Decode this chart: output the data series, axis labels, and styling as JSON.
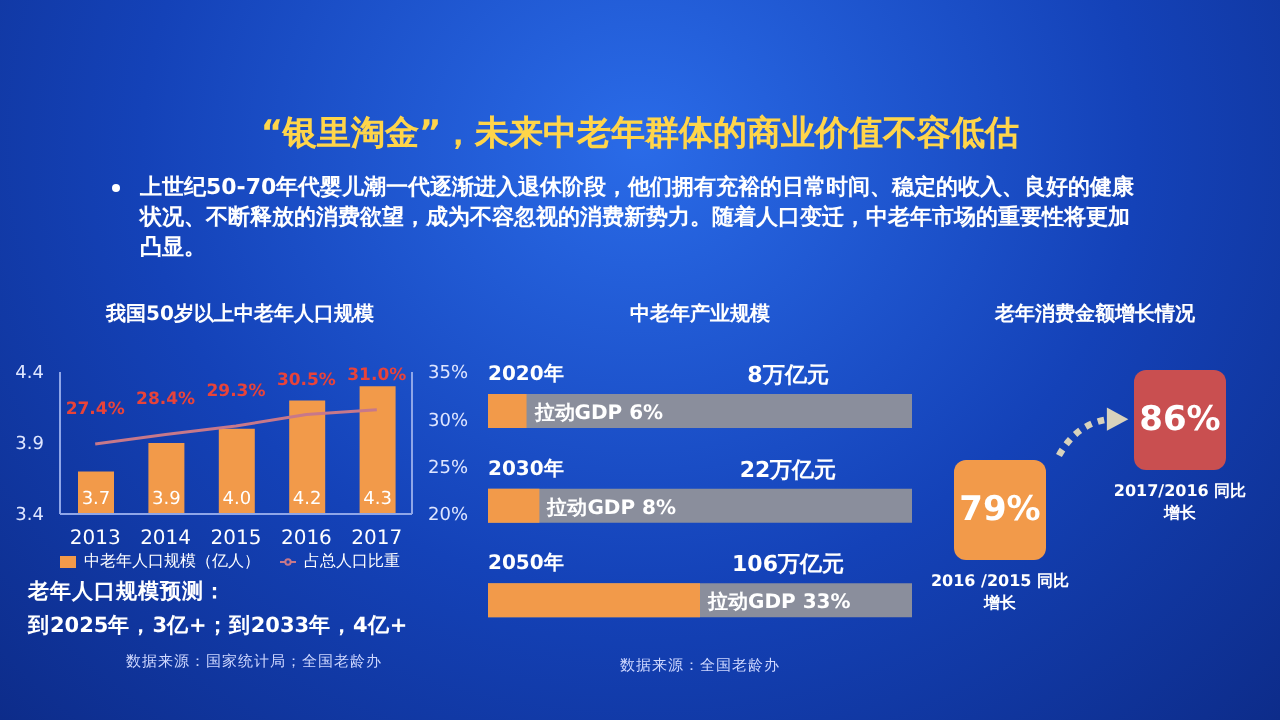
{
  "chart_data": [
    {
      "type": "other",
      "title": "“银里淘金”，未来中老年群体的商业价值不容低估",
      "annotations": [
        "上世纪50-70年代婴儿潮一代逐渐进入退休阶段，他们拥有充裕的日常时间、稳定的收入、良好的健康状况、不断释放的消费欲望，成为不容忽视的消费新势力。随着人口变迁，中老年市场的重要性将更加凸显。"
      ]
    },
    {
      "type": "bar",
      "title": "我国50岁以上中老年人口规模",
      "categories": [
        "2013",
        "2014",
        "2015",
        "2016",
        "2017"
      ],
      "series": [
        {
          "name": "中老年人口规模（亿人）",
          "type": "bar",
          "color": "#f29a4a",
          "values": [
            3.7,
            3.9,
            4.0,
            4.2,
            4.3
          ],
          "value_labels": [
            "3.7",
            "3.9",
            "4.0",
            "4.2",
            "4.3"
          ]
        },
        {
          "name": "占总人口比重",
          "type": "line",
          "axis": "y2",
          "color": "#c7788a",
          "values": [
            27.4,
            28.4,
            29.3,
            30.5,
            31.0
          ],
          "value_labels": [
            "27.4%",
            "28.4%",
            "29.3%",
            "30.5%",
            "31.0%"
          ]
        }
      ],
      "ylim": [
        3.4,
        4.4
      ],
      "yticks": [
        3.4,
        3.9,
        4.4
      ],
      "y2lim": [
        20,
        35
      ],
      "y2ticks": [
        {
          "value": 20,
          "label": "20%"
        },
        {
          "value": 25,
          "label": "25%"
        },
        {
          "value": 30,
          "label": "30%"
        },
        {
          "value": 35,
          "label": "35%"
        }
      ],
      "legend": "bottom",
      "marker": "none",
      "annotations": [
        "老年人口规模预测：",
        "到2025年，3亿+；到2033年，4亿+",
        "数据来源：国家统计局；全国老龄办"
      ]
    },
    {
      "type": "bar",
      "orientation": "horizontal",
      "title": "中老年产业规模",
      "categories": [
        "2020年",
        "2030年",
        "2050年"
      ],
      "values": [
        6,
        8,
        33
      ],
      "value_labels": [
        "拉动GDP 6%",
        "拉动GDP 8%",
        "拉动GDP 33%"
      ],
      "color": "#f29a4a",
      "annotations": [
        "8万亿元",
        "22万亿元",
        "106万亿元",
        "数据来源：全国老龄办"
      ]
    },
    {
      "type": "other",
      "title": "老年消费金额增长情况",
      "categories": [
        "2016 /2015 同比增长",
        "2017/2016 同比增长"
      ],
      "values": [
        79,
        86
      ],
      "value_labels": [
        "79%",
        "86%"
      ],
      "colors": [
        "#f29a4a",
        "#c94f50"
      ]
    }
  ]
}
